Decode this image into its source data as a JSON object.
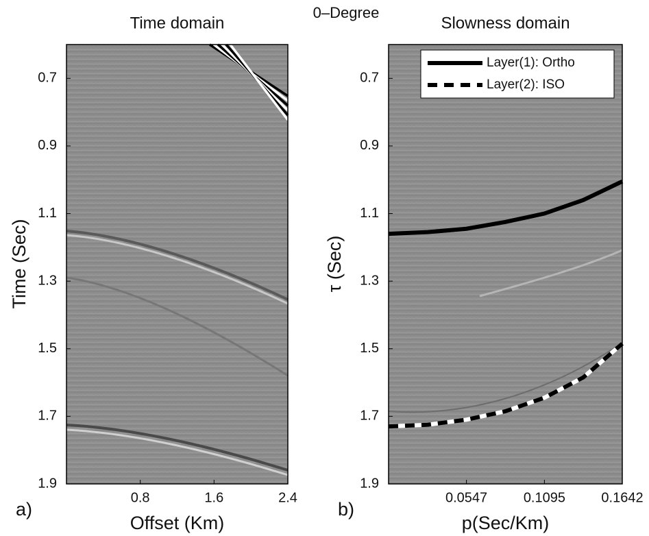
{
  "title": "0–Degree",
  "chart_data": [
    {
      "type": "seismic",
      "title": "Time domain",
      "panel_label": "a)",
      "x_label": "Offset (Km)",
      "y_label": "Time (Sec)",
      "xlim": [
        0,
        2.4
      ],
      "xticks": [
        0.8,
        1.6,
        2.4
      ],
      "ylim": [
        0.6,
        1.9
      ],
      "yticks": [
        0.7,
        0.9,
        1.1,
        1.3,
        1.5,
        1.7,
        1.9
      ],
      "y_inverted": true
    },
    {
      "type": "line",
      "title": "Slowness domain",
      "panel_label": "b)",
      "x_label": "p(Sec/Km)",
      "y_label": "τ (Sec)",
      "xlim": [
        0,
        0.1642
      ],
      "xticks": [
        0.0547,
        0.1095,
        0.1642
      ],
      "ylim": [
        0.6,
        1.9
      ],
      "yticks": [
        0.7,
        0.9,
        1.1,
        1.3,
        1.5,
        1.7,
        1.9
      ],
      "y_inverted": true,
      "x": [
        0,
        0.0274,
        0.0547,
        0.0821,
        0.1095,
        0.1368,
        0.1642
      ],
      "series": [
        {
          "name": "Layer(1): Ortho",
          "color": "#000000",
          "style": "solid",
          "values": [
            1.16,
            1.155,
            1.145,
            1.125,
            1.1,
            1.06,
            1.005
          ]
        },
        {
          "name": "Layer(2): ISO",
          "color": "#000000",
          "style": "dashed",
          "values": [
            1.73,
            1.725,
            1.71,
            1.685,
            1.645,
            1.585,
            1.485
          ]
        }
      ],
      "legend": "upper right"
    }
  ]
}
